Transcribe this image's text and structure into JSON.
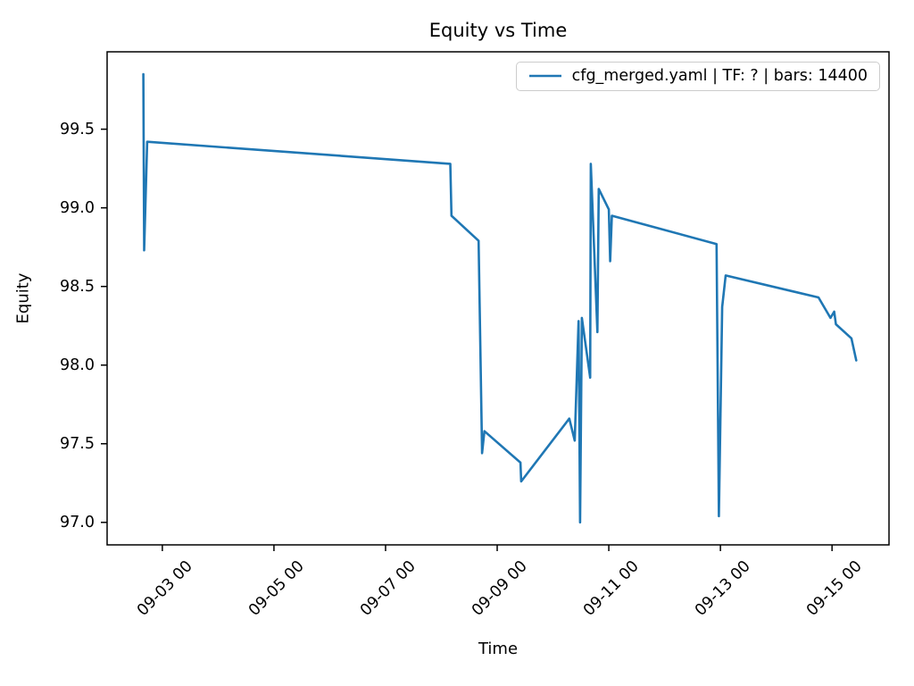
{
  "figure": {
    "title": "Equity vs Time",
    "xlabel": "Time",
    "ylabel": "Equity",
    "legend": {
      "label": "cfg_merged.yaml | TF: ? | bars: 14400",
      "line_color": "#1f77b4"
    }
  },
  "chart_data": {
    "type": "line",
    "title": "Equity vs Time",
    "xlabel": "Time",
    "ylabel": "Equity",
    "grid": false,
    "legend_position": "upper right",
    "legend_entries": [
      "cfg_merged.yaml | TF: ? | bars: 14400"
    ],
    "line_color": "#1f77b4",
    "x_tick_labels": [
      "09-03 00",
      "09-05 00",
      "09-07 00",
      "09-09 00",
      "09-11 00",
      "09-13 00",
      "09-15 00"
    ],
    "y_tick_labels": [
      "97.0",
      "97.5",
      "98.0",
      "98.5",
      "99.0",
      "99.5"
    ],
    "y_ticks": [
      97.0,
      97.5,
      98.0,
      98.5,
      99.0,
      99.5
    ],
    "xlim": [
      "09-02 00:15",
      "09-16 00:30"
    ],
    "ylim": [
      96.857,
      99.992
    ],
    "series": [
      {
        "name": "cfg_merged.yaml | TF: ? | bars: 14400",
        "points": [
          [
            "09-02 15:50",
            99.85
          ],
          [
            "09-02 16:10",
            98.73
          ],
          [
            "09-02 17:30",
            99.42
          ],
          [
            "09-08 03:50",
            99.28
          ],
          [
            "09-08 04:20",
            98.95
          ],
          [
            "09-08 16:00",
            98.79
          ],
          [
            "09-08 17:30",
            97.44
          ],
          [
            "09-08 18:30",
            97.58
          ],
          [
            "09-09 10:00",
            97.38
          ],
          [
            "09-09 10:20",
            97.26
          ],
          [
            "09-10 07:00",
            97.66
          ],
          [
            "09-10 09:20",
            97.52
          ],
          [
            "09-10 11:00",
            98.28
          ],
          [
            "09-10 11:40",
            97.0
          ],
          [
            "09-10 12:25",
            98.3
          ],
          [
            "09-10 16:00",
            97.92
          ],
          [
            "09-10 16:15",
            99.28
          ],
          [
            "09-10 19:05",
            98.21
          ],
          [
            "09-10 19:40",
            99.12
          ],
          [
            "09-11 00:00",
            98.99
          ],
          [
            "09-11 00:35",
            98.66
          ],
          [
            "09-11 01:20",
            98.95
          ],
          [
            "09-12 22:20",
            98.77
          ],
          [
            "09-12 23:20",
            97.04
          ],
          [
            "09-13 00:45",
            98.37
          ],
          [
            "09-13 02:15",
            98.57
          ],
          [
            "09-14 18:10",
            98.43
          ],
          [
            "09-14 23:20",
            98.3
          ],
          [
            "09-15 00:55",
            98.34
          ],
          [
            "09-15 01:40",
            98.26
          ],
          [
            "09-15 08:20",
            98.17
          ],
          [
            "09-15 10:25",
            98.03
          ]
        ]
      }
    ]
  }
}
